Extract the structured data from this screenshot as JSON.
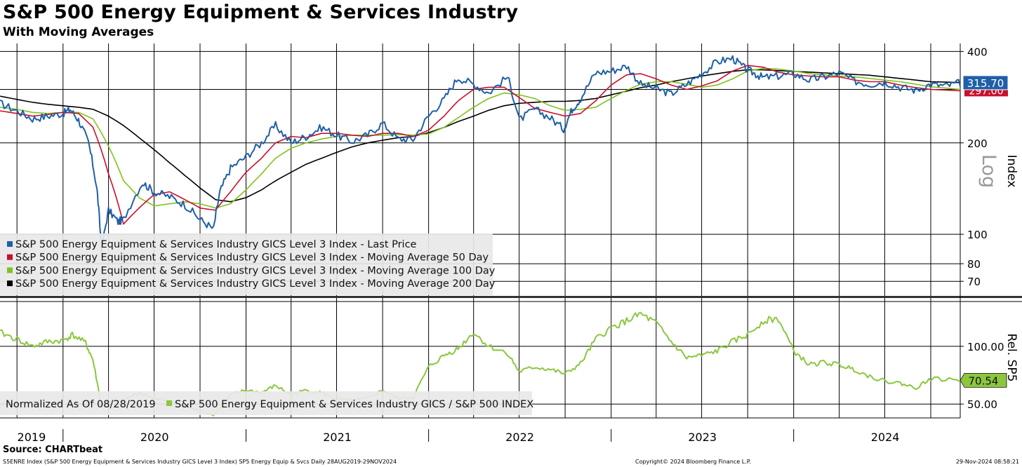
{
  "header": {
    "title": "S&P 500 Energy Equipment & Services Industry",
    "subtitle": "With Moving Averages"
  },
  "footer": {
    "source": "Source: CHARTbeat",
    "left": "S5ENRE Index (S&P 500 Energy Equipment & Services Industry GICS Level 3 Index) SP5 Energy Equip & Svcs  Daily 28AUG2019-29NOV2024",
    "middle": "Copyright© 2024 Bloomberg Finance L.P.",
    "right": "29-Nov-2024 08:58:21"
  },
  "colors": {
    "last_price": "#1f5fa8",
    "ma50": "#c8102e",
    "ma100": "#7fc31c",
    "ma200": "#000000",
    "relative": "#8cc63f"
  },
  "chart_data": [
    {
      "type": "line",
      "scale": "log",
      "ylabel": "Index",
      "scale_note": "Log",
      "ylim": [
        62,
        425
      ],
      "yticks": [
        400,
        200,
        100,
        80,
        70
      ],
      "x_start": "2019-08-28",
      "x_end": "2024-11-29",
      "year_labels": [
        "2019",
        "2020",
        "2021",
        "2022",
        "2023",
        "2024"
      ],
      "last_value_labels": {
        "last_price": "315.70",
        "ma50": "297.00"
      },
      "grid": true,
      "legend_position": "bottom-left",
      "series": [
        {
          "key": "last_price",
          "name": "S&P 500 Energy Equipment & Services Industry GICS Level 3 Index - Last Price",
          "x": [
            "2019-08-28",
            "2019-10-01",
            "2019-11-01",
            "2019-12-01",
            "2020-01-01",
            "2020-01-15",
            "2020-02-01",
            "2020-02-21",
            "2020-03-09",
            "2020-03-18",
            "2020-04-01",
            "2020-04-20",
            "2020-05-01",
            "2020-06-08",
            "2020-07-01",
            "2020-08-01",
            "2020-09-01",
            "2020-10-01",
            "2020-10-28",
            "2020-11-10",
            "2020-12-01",
            "2021-01-01",
            "2021-02-01",
            "2021-03-01",
            "2021-04-01",
            "2021-05-01",
            "2021-06-01",
            "2021-07-01",
            "2021-08-01",
            "2021-09-01",
            "2021-10-01",
            "2021-11-01",
            "2021-12-01",
            "2022-01-01",
            "2022-02-01",
            "2022-03-01",
            "2022-04-01",
            "2022-05-01",
            "2022-06-08",
            "2022-07-01",
            "2022-08-01",
            "2022-09-01",
            "2022-09-28",
            "2022-10-15",
            "2022-11-01",
            "2022-12-01",
            "2023-01-01",
            "2023-02-01",
            "2023-03-01",
            "2023-04-01",
            "2023-05-01",
            "2023-06-01",
            "2023-07-01",
            "2023-08-01",
            "2023-09-01",
            "2023-09-25",
            "2023-10-15",
            "2023-11-01",
            "2023-12-01",
            "2024-01-01",
            "2024-02-01",
            "2024-03-01",
            "2024-04-01",
            "2024-05-01",
            "2024-06-01",
            "2024-07-01",
            "2024-08-01",
            "2024-09-01",
            "2024-10-01",
            "2024-11-01",
            "2024-11-29"
          ],
          "values": [
            270,
            255,
            240,
            245,
            250,
            258,
            238,
            200,
            140,
            88,
            120,
            110,
            112,
            148,
            138,
            133,
            125,
            112,
            104,
            138,
            165,
            180,
            200,
            228,
            200,
            210,
            225,
            212,
            202,
            212,
            232,
            206,
            205,
            245,
            278,
            328,
            312,
            292,
            330,
            238,
            258,
            242,
            222,
            258,
            280,
            340,
            345,
            358,
            312,
            302,
            290,
            312,
            338,
            370,
            380,
            352,
            338,
            328,
            332,
            338,
            322,
            330,
            340,
            320,
            312,
            318,
            305,
            298,
            312,
            308,
            315.7
          ]
        },
        {
          "key": "ma50",
          "name": "S&P 500 Energy Equipment & Services Industry GICS Level 3 Index - Moving Average 50 Day",
          "x": [
            "2019-08-28",
            "2019-10-01",
            "2019-11-01",
            "2019-12-01",
            "2020-01-01",
            "2020-02-01",
            "2020-03-01",
            "2020-04-01",
            "2020-05-01",
            "2020-06-01",
            "2020-07-01",
            "2020-08-01",
            "2020-09-01",
            "2020-10-01",
            "2020-11-01",
            "2020-12-01",
            "2021-01-01",
            "2021-02-01",
            "2021-03-01",
            "2021-04-01",
            "2021-05-01",
            "2021-06-01",
            "2021-07-01",
            "2021-08-01",
            "2021-09-01",
            "2021-10-01",
            "2021-11-01",
            "2021-12-01",
            "2022-01-01",
            "2022-02-01",
            "2022-03-01",
            "2022-04-01",
            "2022-05-01",
            "2022-06-01",
            "2022-07-01",
            "2022-08-01",
            "2022-09-01",
            "2022-10-01",
            "2022-11-01",
            "2022-12-01",
            "2023-01-01",
            "2023-02-01",
            "2023-03-01",
            "2023-04-01",
            "2023-05-01",
            "2023-06-01",
            "2023-07-01",
            "2023-08-01",
            "2023-09-01",
            "2023-10-01",
            "2023-11-01",
            "2023-12-01",
            "2024-01-01",
            "2024-02-01",
            "2024-03-01",
            "2024-04-01",
            "2024-05-01",
            "2024-06-01",
            "2024-07-01",
            "2024-08-01",
            "2024-09-01",
            "2024-10-01",
            "2024-11-29"
          ],
          "values": [
            255,
            250,
            245,
            248,
            252,
            250,
            225,
            158,
            108,
            122,
            135,
            138,
            130,
            122,
            120,
            138,
            160,
            178,
            200,
            210,
            208,
            215,
            215,
            212,
            210,
            215,
            215,
            210,
            220,
            245,
            275,
            300,
            305,
            305,
            282,
            260,
            252,
            245,
            250,
            275,
            310,
            335,
            338,
            325,
            310,
            300,
            308,
            320,
            345,
            360,
            355,
            342,
            335,
            332,
            330,
            330,
            322,
            318,
            318,
            310,
            304,
            300,
            297
          ]
        },
        {
          "key": "ma100",
          "name": "S&P 500 Energy Equipment & Services Industry GICS Level 3 Index - Moving Average 100 Day",
          "x": [
            "2019-08-28",
            "2019-10-01",
            "2019-11-01",
            "2019-12-01",
            "2020-01-01",
            "2020-02-01",
            "2020-03-01",
            "2020-04-01",
            "2020-05-01",
            "2020-06-01",
            "2020-07-01",
            "2020-08-01",
            "2020-09-01",
            "2020-10-01",
            "2020-11-01",
            "2020-12-01",
            "2021-01-01",
            "2021-02-01",
            "2021-03-01",
            "2021-04-01",
            "2021-05-01",
            "2021-06-01",
            "2021-07-01",
            "2021-08-01",
            "2021-09-01",
            "2021-10-01",
            "2021-11-01",
            "2021-12-01",
            "2022-01-01",
            "2022-02-01",
            "2022-03-01",
            "2022-04-01",
            "2022-05-01",
            "2022-06-01",
            "2022-07-01",
            "2022-08-01",
            "2022-09-01",
            "2022-10-01",
            "2022-11-01",
            "2022-12-01",
            "2023-01-01",
            "2023-02-01",
            "2023-03-01",
            "2023-04-01",
            "2023-05-01",
            "2023-06-01",
            "2023-07-01",
            "2023-08-01",
            "2023-09-01",
            "2023-10-01",
            "2023-11-01",
            "2023-12-01",
            "2024-01-01",
            "2024-02-01",
            "2024-03-01",
            "2024-04-01",
            "2024-05-01",
            "2024-06-01",
            "2024-07-01",
            "2024-08-01",
            "2024-09-01",
            "2024-10-01",
            "2024-11-29"
          ],
          "values": [
            262,
            258,
            252,
            250,
            252,
            252,
            240,
            195,
            150,
            132,
            124,
            126,
            128,
            126,
            122,
            126,
            140,
            158,
            178,
            192,
            200,
            206,
            210,
            212,
            212,
            212,
            213,
            212,
            214,
            225,
            242,
            262,
            280,
            292,
            288,
            280,
            265,
            256,
            258,
            262,
            280,
            298,
            312,
            318,
            318,
            312,
            305,
            310,
            325,
            345,
            352,
            350,
            345,
            338,
            335,
            332,
            330,
            326,
            322,
            318,
            312,
            306,
            300
          ]
        },
        {
          "key": "ma200",
          "name": "S&P 500 Energy Equipment & Services Industry GICS Level 3 Index - Moving Average 200 Day",
          "x": [
            "2019-08-28",
            "2019-10-01",
            "2019-11-01",
            "2019-12-01",
            "2020-01-01",
            "2020-02-01",
            "2020-03-01",
            "2020-04-01",
            "2020-05-01",
            "2020-06-01",
            "2020-07-01",
            "2020-08-01",
            "2020-09-01",
            "2020-10-01",
            "2020-11-01",
            "2020-12-01",
            "2021-01-01",
            "2021-02-01",
            "2021-03-01",
            "2021-04-01",
            "2021-05-01",
            "2021-06-01",
            "2021-07-01",
            "2021-08-01",
            "2021-09-01",
            "2021-10-01",
            "2021-11-01",
            "2021-12-01",
            "2022-01-01",
            "2022-02-01",
            "2022-03-01",
            "2022-04-01",
            "2022-05-01",
            "2022-06-01",
            "2022-07-01",
            "2022-08-01",
            "2022-09-01",
            "2022-10-01",
            "2022-11-01",
            "2022-12-01",
            "2023-01-01",
            "2023-02-01",
            "2023-03-01",
            "2023-04-01",
            "2023-05-01",
            "2023-06-01",
            "2023-07-01",
            "2023-08-01",
            "2023-09-01",
            "2023-10-01",
            "2023-11-01",
            "2023-12-01",
            "2024-01-01",
            "2024-02-01",
            "2024-03-01",
            "2024-04-01",
            "2024-05-01",
            "2024-06-01",
            "2024-07-01",
            "2024-08-01",
            "2024-09-01",
            "2024-10-01",
            "2024-11-29"
          ],
          "values": [
            285,
            278,
            272,
            268,
            265,
            262,
            258,
            245,
            228,
            208,
            190,
            172,
            156,
            142,
            130,
            128,
            132,
            140,
            150,
            160,
            170,
            178,
            186,
            194,
            200,
            204,
            208,
            210,
            216,
            225,
            235,
            245,
            256,
            265,
            270,
            272,
            274,
            274,
            276,
            280,
            288,
            296,
            304,
            310,
            318,
            325,
            332,
            338,
            344,
            348,
            348,
            346,
            344,
            342,
            340,
            338,
            336,
            334,
            330,
            326,
            322,
            318,
            316
          ]
        }
      ]
    },
    {
      "type": "line",
      "ylabel": "Rel. SP5",
      "ylim": [
        38,
        140
      ],
      "yticks": [
        "100.00",
        "50.00"
      ],
      "last_value_label": "70.54",
      "legend_note": "Normalized As Of 08/28/2019",
      "series": [
        {
          "key": "relative",
          "name": "S&P 500 Energy Equipment & Services Industry GICS / S&P 500 INDEX",
          "x": [
            "2019-08-28",
            "2019-10-01",
            "2019-11-01",
            "2019-12-01",
            "2020-01-01",
            "2020-01-20",
            "2020-02-15",
            "2020-03-01",
            "2020-03-18",
            "2020-04-01",
            "2020-05-01",
            "2020-06-01",
            "2020-07-01",
            "2020-08-01",
            "2020-09-01",
            "2020-10-01",
            "2020-10-28",
            "2020-11-15",
            "2020-12-01",
            "2021-01-01",
            "2021-02-01",
            "2021-03-01",
            "2021-04-01",
            "2021-05-01",
            "2021-06-01",
            "2021-07-01",
            "2021-08-01",
            "2021-09-01",
            "2021-10-01",
            "2021-11-01",
            "2021-12-01",
            "2022-01-01",
            "2022-02-01",
            "2022-03-01",
            "2022-04-01",
            "2022-05-01",
            "2022-06-08",
            "2022-07-01",
            "2022-08-01",
            "2022-09-01",
            "2022-10-01",
            "2022-11-01",
            "2022-12-01",
            "2023-01-01",
            "2023-02-01",
            "2023-03-01",
            "2023-04-01",
            "2023-05-01",
            "2023-06-01",
            "2023-07-01",
            "2023-08-01",
            "2023-09-01",
            "2023-10-01",
            "2023-11-01",
            "2023-12-01",
            "2024-01-01",
            "2024-02-01",
            "2024-03-01",
            "2024-04-01",
            "2024-05-01",
            "2024-06-01",
            "2024-07-01",
            "2024-08-01",
            "2024-09-01",
            "2024-10-01",
            "2024-11-29"
          ],
          "values": [
            112,
            106,
            100,
            104,
            105,
            110,
            103,
            88,
            48,
            52,
            53,
            60,
            55,
            52,
            48,
            44,
            41,
            48,
            58,
            62,
            60,
            66,
            58,
            62,
            60,
            54,
            53,
            55,
            62,
            55,
            56,
            82,
            92,
            98,
            112,
            100,
            94,
            78,
            82,
            80,
            76,
            85,
            106,
            116,
            122,
            128,
            120,
            104,
            90,
            92,
            96,
            104,
            110,
            122,
            124,
            96,
            84,
            86,
            84,
            80,
            74,
            70,
            68,
            64,
            72,
            70.54
          ]
        }
      ]
    }
  ]
}
